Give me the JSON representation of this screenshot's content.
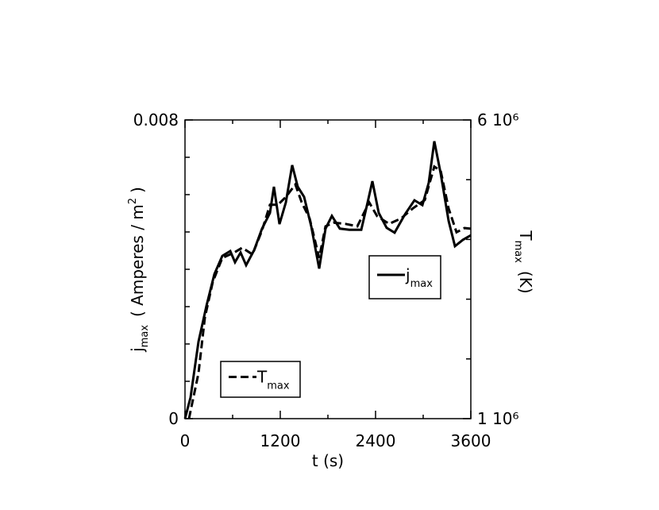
{
  "chart_data": {
    "type": "line",
    "xlabel": "t (s)",
    "ylabel": {
      "main": "j",
      "sub": "max",
      "rest": "( Amperes / m",
      "sup": "2",
      "end": ")"
    },
    "y2label": {
      "main": "T",
      "sub": "max",
      "rest": "(K)"
    },
    "xlim": [
      0,
      3600
    ],
    "xticks": [
      0,
      1200,
      2400,
      3600
    ],
    "xminorticks": [
      600,
      1800,
      3000
    ],
    "ylim": [
      0,
      0.008
    ],
    "yticks": [
      0,
      0.008
    ],
    "yminorticks": [
      0.001,
      0.002,
      0.003,
      0.004,
      0.005,
      0.006,
      0.007
    ],
    "y2lim": [
      1000000,
      6000000
    ],
    "y2ticks": [
      {
        "value": 1000000,
        "label": "1 10⁶"
      },
      {
        "value": 6000000,
        "label": "6 10⁶"
      }
    ],
    "y2minorticks": [
      2000000,
      3000000,
      4000000,
      5000000
    ],
    "series": [
      {
        "name": "j",
        "name_sub": "max",
        "color": "#000000",
        "dash": "solid",
        "x": [
          0,
          70,
          170,
          270,
          370,
          470,
          570,
          630,
          700,
          770,
          870,
          970,
          1070,
          1120,
          1190,
          1270,
          1350,
          1420,
          1500,
          1590,
          1690,
          1770,
          1850,
          1950,
          2070,
          2220,
          2300,
          2360,
          2440,
          2540,
          2640,
          2770,
          2890,
          2990,
          3070,
          3140,
          3220,
          3320,
          3400,
          3500,
          3600
        ],
        "values": [
          0,
          0.00057,
          0.00206,
          0.00302,
          0.00387,
          0.00436,
          0.00449,
          0.00419,
          0.00445,
          0.00411,
          0.00451,
          0.00509,
          0.00551,
          0.00621,
          0.00521,
          0.00579,
          0.00679,
          0.00621,
          0.00594,
          0.00515,
          0.00402,
          0.00509,
          0.00543,
          0.00509,
          0.00506,
          0.00506,
          0.00579,
          0.00636,
          0.00551,
          0.00511,
          0.00498,
          0.00547,
          0.00585,
          0.00572,
          0.00632,
          0.00743,
          0.00657,
          0.0053,
          0.00462,
          0.00479,
          0.00491
        ]
      },
      {
        "name": "T",
        "name_sub": "max",
        "color": "#000000",
        "dash": "dashed",
        "axis": "y2",
        "x": [
          50,
          170,
          250,
          350,
          470,
          620,
          720,
          850,
          970,
          1070,
          1170,
          1270,
          1390,
          1470,
          1570,
          1690,
          1770,
          1870,
          2020,
          2170,
          2320,
          2420,
          2570,
          2720,
          2870,
          3020,
          3140,
          3220,
          3320,
          3420,
          3520,
          3600
        ],
        "values": [
          1000000,
          1760000,
          2690000,
          3290000,
          3690000,
          3780000,
          3860000,
          3750000,
          4150000,
          4580000,
          4580000,
          4710000,
          4920000,
          4620000,
          4350000,
          3690000,
          4220000,
          4280000,
          4260000,
          4220000,
          4620000,
          4390000,
          4260000,
          4350000,
          4520000,
          4660000,
          5220000,
          5150000,
          4520000,
          4120000,
          4190000,
          4180000
        ]
      }
    ]
  }
}
